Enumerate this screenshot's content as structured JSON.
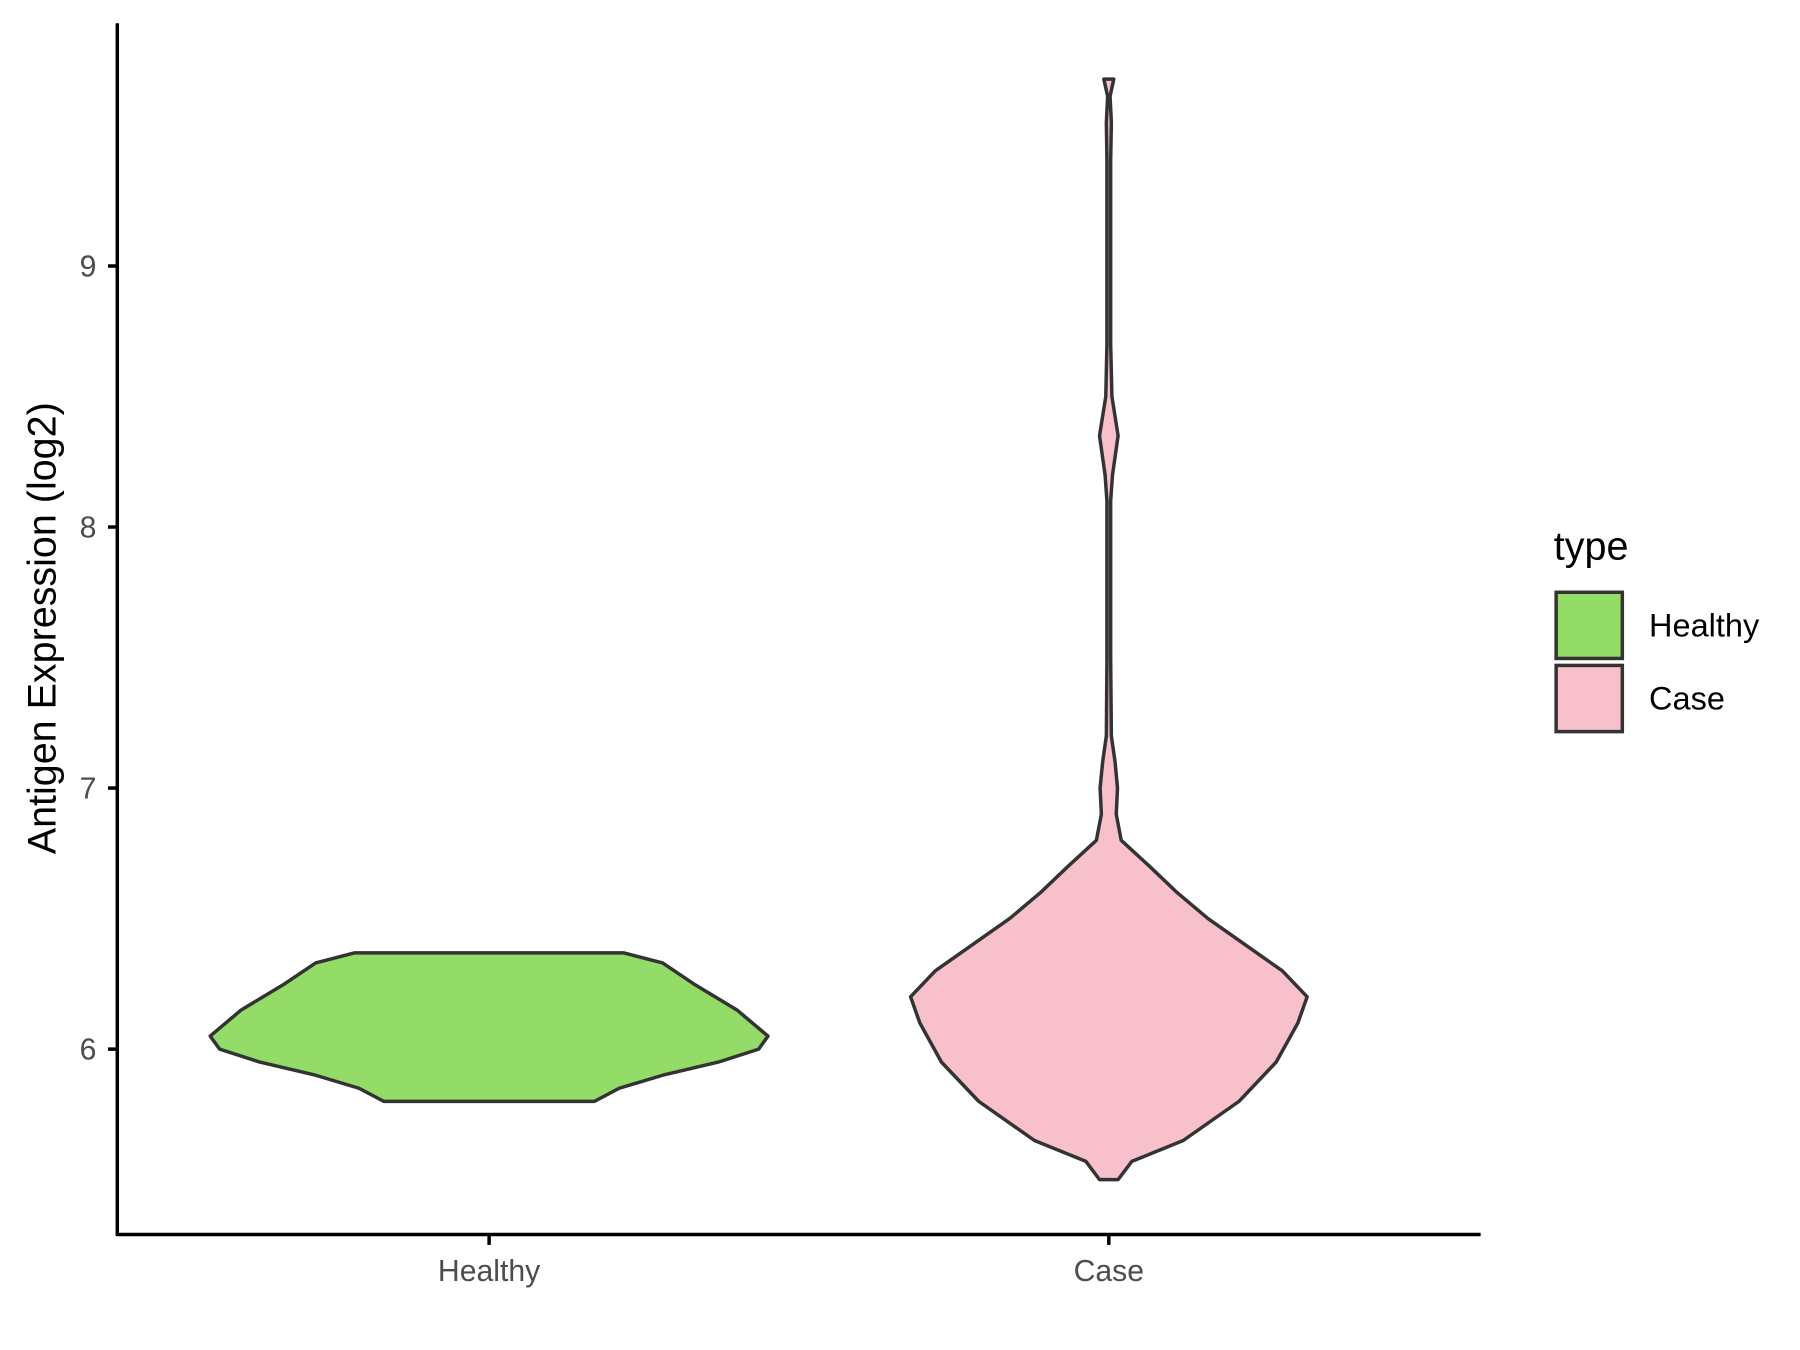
{
  "chart_data": {
    "type": "violin",
    "y_label": "Antigen Expression (log2)",
    "categories": [
      "Healthy",
      "Case"
    ],
    "ylim": [
      5.29,
      9.93
    ],
    "yticks": [
      6,
      7,
      8,
      9
    ],
    "legend_title": "type",
    "legend_position": "right",
    "series": [
      {
        "name": "Healthy",
        "color": "#93dc68",
        "y": [
          5.8,
          5.85,
          5.9,
          5.95,
          6.0,
          6.05,
          6.15,
          6.25,
          6.33,
          6.369
        ],
        "width": [
          0.17,
          0.21,
          0.28,
          0.37,
          0.435,
          0.45,
          0.4,
          0.33,
          0.28,
          0.217
        ]
      },
      {
        "name": "Case",
        "color": "#f8c0cb",
        "y": [
          5.5,
          5.57,
          5.65,
          5.8,
          5.95,
          6.1,
          6.2,
          6.3,
          6.4,
          6.5,
          6.6,
          6.7,
          6.8,
          6.9,
          7.0,
          7.1,
          7.2,
          7.5,
          8.1,
          8.2,
          8.35,
          8.5,
          8.7,
          9.0,
          9.4,
          9.55,
          9.65,
          9.716
        ],
        "width": [
          0.015,
          0.037,
          0.12,
          0.21,
          0.27,
          0.305,
          0.32,
          0.28,
          0.22,
          0.16,
          0.11,
          0.066,
          0.02,
          0.012,
          0.014,
          0.01,
          0.004,
          0.003,
          0.003,
          0.006,
          0.015,
          0.005,
          0.003,
          0.003,
          0.003,
          0.004,
          0.002,
          0.008
        ]
      }
    ]
  }
}
